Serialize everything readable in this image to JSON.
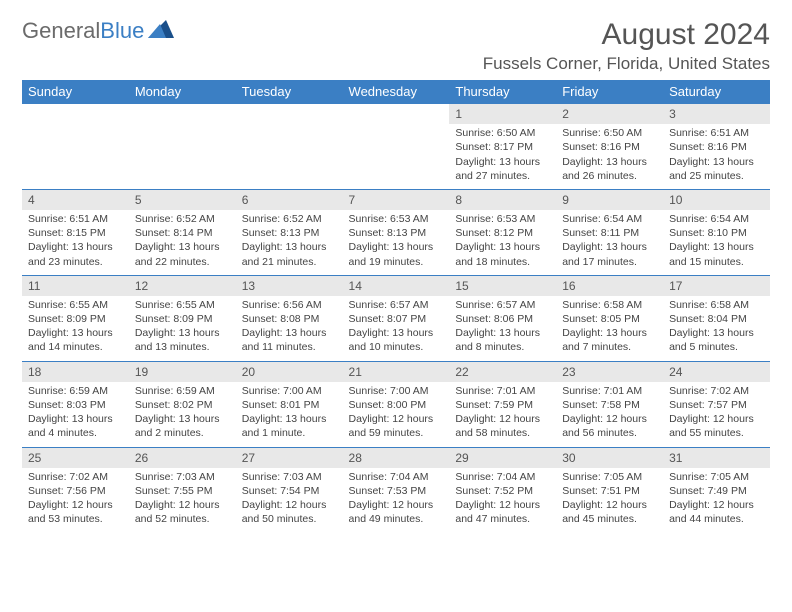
{
  "header": {
    "logo_general": "General",
    "logo_blue": "Blue",
    "month_title": "August 2024",
    "location": "Fussels Corner, Florida, United States"
  },
  "colors": {
    "header_bg": "#3b7fc4",
    "daynum_bg": "#e8e8e8",
    "text": "#555555"
  },
  "weekdays": [
    "Sunday",
    "Monday",
    "Tuesday",
    "Wednesday",
    "Thursday",
    "Friday",
    "Saturday"
  ],
  "weeks": [
    [
      {
        "n": "",
        "sr": "",
        "ss": "",
        "dl": ""
      },
      {
        "n": "",
        "sr": "",
        "ss": "",
        "dl": ""
      },
      {
        "n": "",
        "sr": "",
        "ss": "",
        "dl": ""
      },
      {
        "n": "",
        "sr": "",
        "ss": "",
        "dl": ""
      },
      {
        "n": "1",
        "sr": "Sunrise: 6:50 AM",
        "ss": "Sunset: 8:17 PM",
        "dl": "Daylight: 13 hours and 27 minutes."
      },
      {
        "n": "2",
        "sr": "Sunrise: 6:50 AM",
        "ss": "Sunset: 8:16 PM",
        "dl": "Daylight: 13 hours and 26 minutes."
      },
      {
        "n": "3",
        "sr": "Sunrise: 6:51 AM",
        "ss": "Sunset: 8:16 PM",
        "dl": "Daylight: 13 hours and 25 minutes."
      }
    ],
    [
      {
        "n": "4",
        "sr": "Sunrise: 6:51 AM",
        "ss": "Sunset: 8:15 PM",
        "dl": "Daylight: 13 hours and 23 minutes."
      },
      {
        "n": "5",
        "sr": "Sunrise: 6:52 AM",
        "ss": "Sunset: 8:14 PM",
        "dl": "Daylight: 13 hours and 22 minutes."
      },
      {
        "n": "6",
        "sr": "Sunrise: 6:52 AM",
        "ss": "Sunset: 8:13 PM",
        "dl": "Daylight: 13 hours and 21 minutes."
      },
      {
        "n": "7",
        "sr": "Sunrise: 6:53 AM",
        "ss": "Sunset: 8:13 PM",
        "dl": "Daylight: 13 hours and 19 minutes."
      },
      {
        "n": "8",
        "sr": "Sunrise: 6:53 AM",
        "ss": "Sunset: 8:12 PM",
        "dl": "Daylight: 13 hours and 18 minutes."
      },
      {
        "n": "9",
        "sr": "Sunrise: 6:54 AM",
        "ss": "Sunset: 8:11 PM",
        "dl": "Daylight: 13 hours and 17 minutes."
      },
      {
        "n": "10",
        "sr": "Sunrise: 6:54 AM",
        "ss": "Sunset: 8:10 PM",
        "dl": "Daylight: 13 hours and 15 minutes."
      }
    ],
    [
      {
        "n": "11",
        "sr": "Sunrise: 6:55 AM",
        "ss": "Sunset: 8:09 PM",
        "dl": "Daylight: 13 hours and 14 minutes."
      },
      {
        "n": "12",
        "sr": "Sunrise: 6:55 AM",
        "ss": "Sunset: 8:09 PM",
        "dl": "Daylight: 13 hours and 13 minutes."
      },
      {
        "n": "13",
        "sr": "Sunrise: 6:56 AM",
        "ss": "Sunset: 8:08 PM",
        "dl": "Daylight: 13 hours and 11 minutes."
      },
      {
        "n": "14",
        "sr": "Sunrise: 6:57 AM",
        "ss": "Sunset: 8:07 PM",
        "dl": "Daylight: 13 hours and 10 minutes."
      },
      {
        "n": "15",
        "sr": "Sunrise: 6:57 AM",
        "ss": "Sunset: 8:06 PM",
        "dl": "Daylight: 13 hours and 8 minutes."
      },
      {
        "n": "16",
        "sr": "Sunrise: 6:58 AM",
        "ss": "Sunset: 8:05 PM",
        "dl": "Daylight: 13 hours and 7 minutes."
      },
      {
        "n": "17",
        "sr": "Sunrise: 6:58 AM",
        "ss": "Sunset: 8:04 PM",
        "dl": "Daylight: 13 hours and 5 minutes."
      }
    ],
    [
      {
        "n": "18",
        "sr": "Sunrise: 6:59 AM",
        "ss": "Sunset: 8:03 PM",
        "dl": "Daylight: 13 hours and 4 minutes."
      },
      {
        "n": "19",
        "sr": "Sunrise: 6:59 AM",
        "ss": "Sunset: 8:02 PM",
        "dl": "Daylight: 13 hours and 2 minutes."
      },
      {
        "n": "20",
        "sr": "Sunrise: 7:00 AM",
        "ss": "Sunset: 8:01 PM",
        "dl": "Daylight: 13 hours and 1 minute."
      },
      {
        "n": "21",
        "sr": "Sunrise: 7:00 AM",
        "ss": "Sunset: 8:00 PM",
        "dl": "Daylight: 12 hours and 59 minutes."
      },
      {
        "n": "22",
        "sr": "Sunrise: 7:01 AM",
        "ss": "Sunset: 7:59 PM",
        "dl": "Daylight: 12 hours and 58 minutes."
      },
      {
        "n": "23",
        "sr": "Sunrise: 7:01 AM",
        "ss": "Sunset: 7:58 PM",
        "dl": "Daylight: 12 hours and 56 minutes."
      },
      {
        "n": "24",
        "sr": "Sunrise: 7:02 AM",
        "ss": "Sunset: 7:57 PM",
        "dl": "Daylight: 12 hours and 55 minutes."
      }
    ],
    [
      {
        "n": "25",
        "sr": "Sunrise: 7:02 AM",
        "ss": "Sunset: 7:56 PM",
        "dl": "Daylight: 12 hours and 53 minutes."
      },
      {
        "n": "26",
        "sr": "Sunrise: 7:03 AM",
        "ss": "Sunset: 7:55 PM",
        "dl": "Daylight: 12 hours and 52 minutes."
      },
      {
        "n": "27",
        "sr": "Sunrise: 7:03 AM",
        "ss": "Sunset: 7:54 PM",
        "dl": "Daylight: 12 hours and 50 minutes."
      },
      {
        "n": "28",
        "sr": "Sunrise: 7:04 AM",
        "ss": "Sunset: 7:53 PM",
        "dl": "Daylight: 12 hours and 49 minutes."
      },
      {
        "n": "29",
        "sr": "Sunrise: 7:04 AM",
        "ss": "Sunset: 7:52 PM",
        "dl": "Daylight: 12 hours and 47 minutes."
      },
      {
        "n": "30",
        "sr": "Sunrise: 7:05 AM",
        "ss": "Sunset: 7:51 PM",
        "dl": "Daylight: 12 hours and 45 minutes."
      },
      {
        "n": "31",
        "sr": "Sunrise: 7:05 AM",
        "ss": "Sunset: 7:49 PM",
        "dl": "Daylight: 12 hours and 44 minutes."
      }
    ]
  ]
}
